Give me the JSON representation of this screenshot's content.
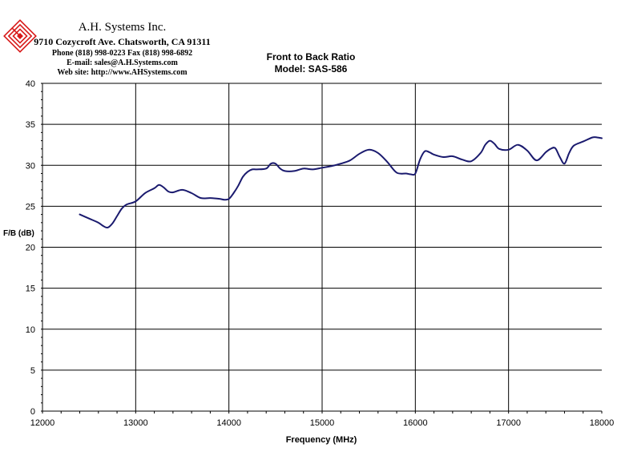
{
  "company": {
    "name": "A.H. Systems Inc.",
    "address": "9710 Cozycroft Ave. Chatsworth, CA 91311",
    "phone": "Phone (818) 998-0223 Fax (818) 998-6892",
    "email": "E-mail: sales@A.H.Systems.com",
    "website": "Web site: http://www.AHSystems.com"
  },
  "colors": {
    "line": "#1a1a6e",
    "logo": "#d81818",
    "grid": "#000000"
  },
  "chart_data": {
    "type": "line",
    "title": "Front to Back Ratio",
    "subtitle": "Model: SAS-586",
    "xlabel": "Frequency (MHz)",
    "ylabel": "F/B (dB)",
    "xlim": [
      12000,
      18000
    ],
    "ylim": [
      0,
      40
    ],
    "xticks": [
      12000,
      13000,
      14000,
      15000,
      16000,
      17000,
      18000
    ],
    "yticks": [
      0,
      5,
      10,
      15,
      20,
      25,
      30,
      35,
      40
    ],
    "grid": true,
    "legend": "none",
    "series": [
      {
        "x": [
          12400,
          12500,
          12600,
          12650,
          12700,
          12750,
          12800,
          12850,
          12900,
          13000,
          13100,
          13200,
          13250,
          13300,
          13350,
          13400,
          13500,
          13600,
          13700,
          13800,
          13900,
          13950,
          14000,
          14050,
          14100,
          14150,
          14200,
          14250,
          14300,
          14400,
          14450,
          14500,
          14550,
          14600,
          14700,
          14800,
          14900,
          15000,
          15100,
          15200,
          15300,
          15400,
          15500,
          15600,
          15700,
          15800,
          15900,
          15950,
          16000,
          16050,
          16100,
          16150,
          16200,
          16300,
          16400,
          16500,
          16600,
          16700,
          16750,
          16800,
          16850,
          16900,
          17000,
          17100,
          17200,
          17300,
          17400,
          17450,
          17500,
          17550,
          17600,
          17650,
          17700,
          17800,
          17900,
          17950,
          18000
        ],
        "y": [
          24.0,
          23.5,
          23.0,
          22.6,
          22.4,
          22.9,
          23.8,
          24.7,
          25.2,
          25.6,
          26.6,
          27.2,
          27.6,
          27.3,
          26.8,
          26.7,
          27.0,
          26.6,
          26.0,
          26.0,
          25.9,
          25.8,
          25.9,
          26.6,
          27.5,
          28.6,
          29.2,
          29.5,
          29.5,
          29.6,
          30.2,
          30.2,
          29.6,
          29.3,
          29.3,
          29.6,
          29.5,
          29.7,
          29.9,
          30.2,
          30.6,
          31.4,
          31.9,
          31.5,
          30.4,
          29.1,
          29.0,
          28.9,
          29.0,
          30.7,
          31.7,
          31.6,
          31.3,
          31.0,
          31.1,
          30.7,
          30.5,
          31.5,
          32.5,
          33.0,
          32.6,
          32.0,
          31.9,
          32.5,
          31.8,
          30.6,
          31.6,
          32.0,
          32.1,
          31.0,
          30.2,
          31.5,
          32.4,
          32.9,
          33.4,
          33.4,
          33.3
        ]
      }
    ]
  }
}
